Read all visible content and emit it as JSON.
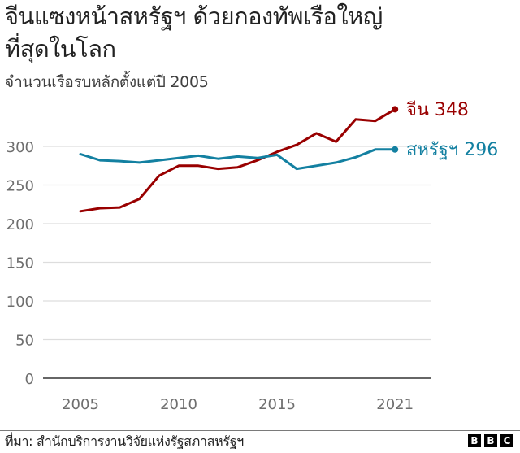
{
  "header": {
    "title_line1": "จีนแซงหน้าสหรัฐฯ ด้วยกองทัพเรือใหญ่",
    "title_line2": "ที่สุดในโลก",
    "subtitle": "จำนวนเรือรบหลักตั้งแต่ปี 2005"
  },
  "footer": {
    "source": "ที่มา: สำนักบริการงานวิจัยแห่งรัฐสภาสหรัฐฯ",
    "logo_letters": [
      "B",
      "B",
      "C"
    ]
  },
  "colors": {
    "china": "#990000",
    "us": "#1380A1",
    "grid": "#dddddd",
    "baseline": "#333333"
  },
  "chart_data": {
    "type": "line",
    "title": "จีนแซงหน้าสหรัฐฯ ด้วยกองทัพเรือใหญ่ที่สุดในโลก",
    "subtitle": "จำนวนเรือรบหลักตั้งแต่ปี 2005",
    "xlabel": "",
    "ylabel": "",
    "x": [
      2005,
      2006,
      2007,
      2008,
      2009,
      2010,
      2011,
      2012,
      2013,
      2014,
      2015,
      2016,
      2017,
      2018,
      2019,
      2020,
      2021
    ],
    "series": [
      {
        "name": "จีน",
        "color": "#990000",
        "values": [
          216,
          220,
          221,
          232,
          262,
          275,
          275,
          271,
          273,
          282,
          293,
          302,
          317,
          306,
          335,
          333,
          348
        ],
        "end_label": "จีน 348"
      },
      {
        "name": "สหรัฐฯ",
        "color": "#1380A1",
        "values": [
          290,
          282,
          281,
          279,
          282,
          285,
          288,
          284,
          287,
          285,
          289,
          271,
          275,
          279,
          286,
          296,
          296
        ],
        "end_label": "สหรัฐฯ 296"
      }
    ],
    "yticks": [
      0,
      50,
      100,
      150,
      200,
      250,
      300
    ],
    "ytick_labels": [
      "0",
      "50",
      "100",
      "150",
      "200",
      "250",
      "300"
    ],
    "xticks": [
      2005,
      2010,
      2015,
      2021
    ],
    "xtick_labels": [
      "2005",
      "2010",
      "2015",
      "2021"
    ],
    "ylim": [
      0,
      350
    ],
    "xlim": [
      2003,
      2023
    ],
    "grid": true,
    "legend": "direct labels at line ends"
  }
}
